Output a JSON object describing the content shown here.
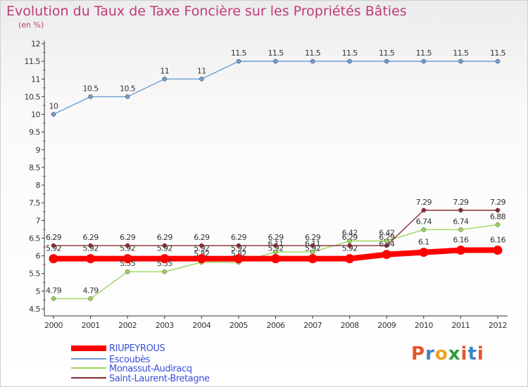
{
  "header": {
    "title": "Evolution du Taux de Taxe Foncière sur les Propriétés Bâties",
    "unit": "(en %)"
  },
  "logo": {
    "text": "Proxiti",
    "colors": [
      "#e8532b",
      "#3b83c8",
      "#f2a020",
      "#2f9a3a",
      "#e8532b",
      "#3b83c8",
      "#e8532b"
    ]
  },
  "chart_data": {
    "type": "line",
    "title": "Evolution du Taux de Taxe Foncière sur les Propriétés Bâties",
    "ylabel": "(en %)",
    "xlabel": "",
    "ylim": [
      4.5,
      12
    ],
    "yticks": [
      "4.5",
      "5",
      "5.5",
      "6",
      "6.5",
      "7",
      "7.5",
      "8",
      "8.5",
      "9",
      "9.5",
      "10",
      "10.5",
      "11",
      "11.5",
      "12"
    ],
    "categories": [
      "2000",
      "2001",
      "2002",
      "2003",
      "2004",
      "2005",
      "2006",
      "2007",
      "2008",
      "2009",
      "2010",
      "2011",
      "2012"
    ],
    "series": [
      {
        "name": "RIUPEYROUS",
        "color": "#ff0000",
        "values": [
          5.92,
          5.92,
          5.92,
          5.92,
          5.92,
          5.92,
          5.92,
          5.92,
          5.92,
          6.04,
          6.1,
          6.16,
          6.16
        ],
        "labels": [
          "5.92",
          "5.92",
          "5.92",
          "5.92",
          "5.92",
          "5.92",
          "5.92",
          "5.92",
          "5.92",
          "6.04",
          "6.1",
          "6.16",
          "6.16"
        ]
      },
      {
        "name": "Escoubès",
        "color": "#6f9fd4",
        "values": [
          10,
          10.5,
          10.5,
          11,
          11,
          11.5,
          11.5,
          11.5,
          11.5,
          11.5,
          11.5,
          11.5,
          11.5
        ],
        "labels": [
          "10",
          "10.5",
          "10.5",
          "11",
          "11",
          "11.5",
          "11.5",
          "11.5",
          "11.5",
          "11.5",
          "11.5",
          "11.5",
          "11.5"
        ]
      },
      {
        "name": "Monassut-Audiracq",
        "color": "#9bd75a",
        "values": [
          4.79,
          4.79,
          5.55,
          5.55,
          5.82,
          5.82,
          6.11,
          6.11,
          6.42,
          6.42,
          6.74,
          6.74,
          6.88
        ],
        "labels": [
          "4.79",
          "4.79",
          "5.55",
          "5.55",
          "5.82",
          "5.82",
          "6.11",
          "6.11",
          "6.42",
          "6.42",
          "6.74",
          "6.74",
          "6.88"
        ]
      },
      {
        "name": "Saint-Laurent-Bretagne",
        "color": "#8b2c34",
        "values": [
          6.29,
          6.29,
          6.29,
          6.29,
          6.29,
          6.29,
          6.29,
          6.29,
          6.29,
          6.29,
          7.29,
          7.29,
          7.29
        ],
        "labels": [
          "6.29",
          "6.29",
          "6.29",
          "6.29",
          "6.29",
          "6.29",
          "6.29",
          "6.29",
          "6.29",
          "6.29",
          "7.29",
          "7.29",
          "7.29"
        ]
      }
    ],
    "grid": false,
    "legend": "bottom-left"
  }
}
